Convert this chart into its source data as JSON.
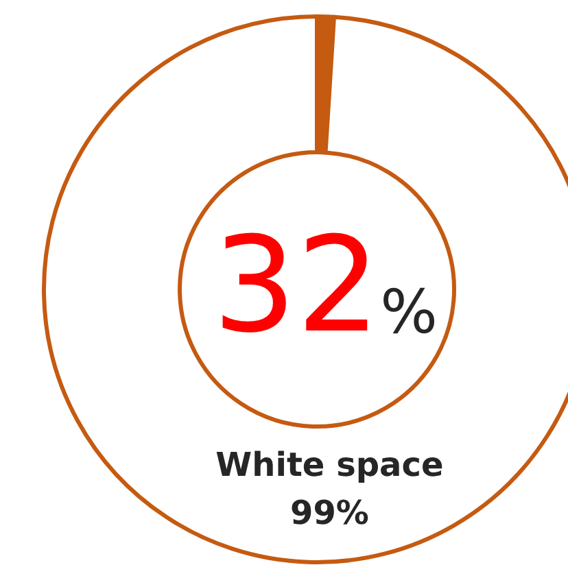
{
  "chart_data": {
    "type": "donut",
    "categories": [
      null,
      "White space"
    ],
    "values": [
      1,
      99
    ],
    "colors": [
      "#c55a11",
      "#ffffff"
    ],
    "value_labels": [
      null,
      "99%"
    ],
    "annotations": [
      "32%"
    ]
  }
}
